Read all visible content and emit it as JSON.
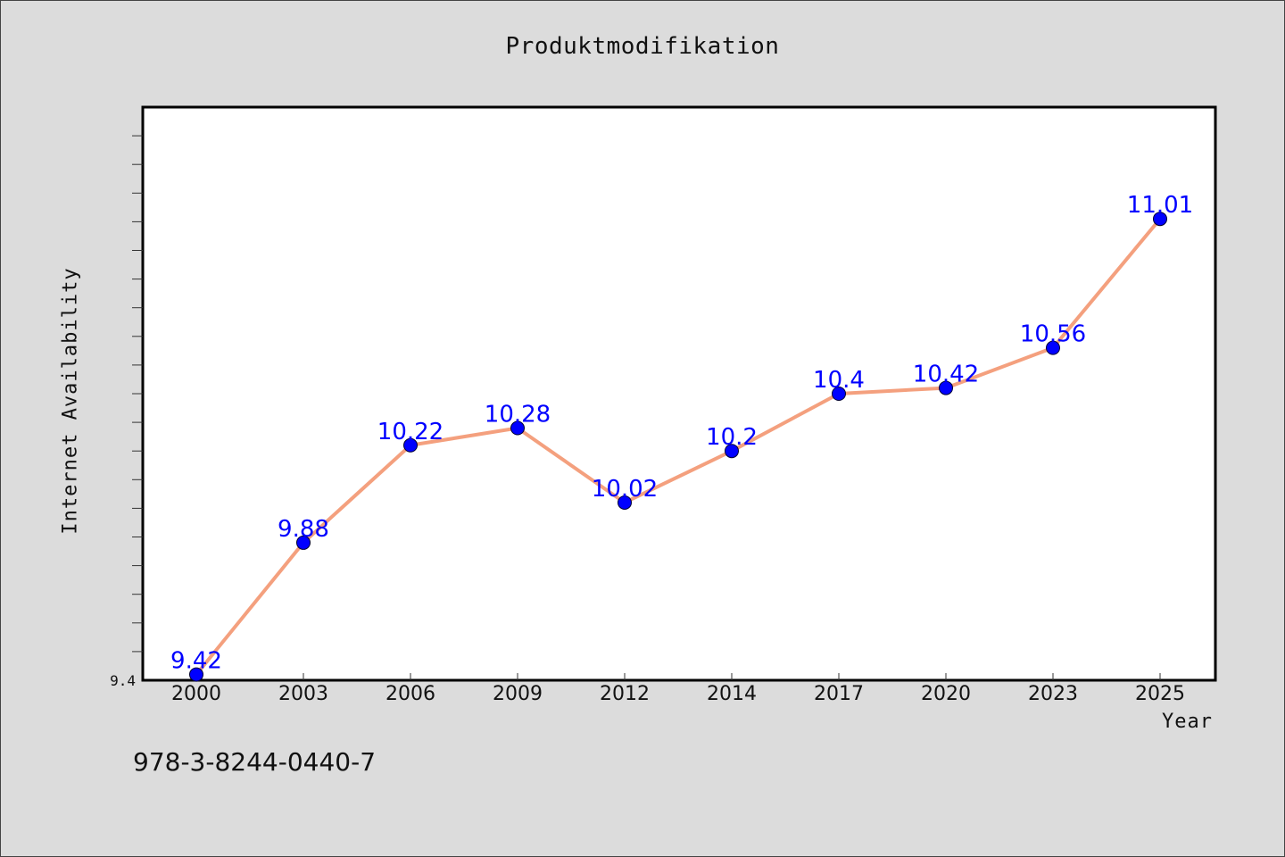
{
  "chart_data": {
    "type": "line",
    "title": "Produktmodifikation",
    "xlabel": "Year",
    "ylabel": "Internet Availability",
    "categories": [
      "2000",
      "2003",
      "2006",
      "2009",
      "2012",
      "2014",
      "2017",
      "2020",
      "2023",
      "2025"
    ],
    "series": [
      {
        "values": [
          9.42,
          9.88,
          10.22,
          10.28,
          10.02,
          10.2,
          10.4,
          10.42,
          10.56,
          11.01
        ]
      }
    ],
    "data_labels": [
      "9.42",
      "9.88",
      "10.22",
      "10.28",
      "10.02",
      "10.2",
      "10.4",
      "10.42",
      "10.56",
      "11.01"
    ],
    "ylim": [
      9.4,
      11.4
    ],
    "ytick_label": "9.4",
    "grid": false,
    "colors": {
      "line": "#f4a07e",
      "marker": "#0000ff",
      "data_label": "#0000ff",
      "plot_bg": "#ffffff",
      "figure_bg": "#dcdcdc"
    }
  },
  "footer": {
    "isbn": "978-3-8244-0440-7"
  }
}
